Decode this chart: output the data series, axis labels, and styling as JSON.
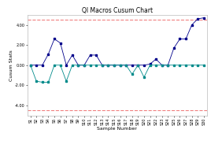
{
  "title": "QI Macros Cusum Chart",
  "xlabel": "Sample Number",
  "ylabel": "Cusum Stats",
  "ylim": [
    -5.0,
    5.0
  ],
  "yticks": [
    -4.0,
    -2.0,
    0.0,
    2.0,
    4.0
  ],
  "ytick_labels": [
    "-4.00",
    "-2.00",
    "0.00",
    "2.00",
    "4.00"
  ],
  "upper_limit": 4.5,
  "lower_limit": -4.5,
  "limit_color": "#f08080",
  "limit_dash": "--",
  "x_labels": [
    "S1",
    "S2",
    "S3",
    "S4",
    "S5",
    "S6",
    "S7",
    "S8",
    "S9",
    "S10",
    "S11",
    "S12",
    "S13",
    "S14",
    "S15",
    "S16",
    "S17",
    "S18",
    "S19",
    "S20",
    "S21",
    "S22",
    "S23",
    "S24",
    "S25",
    "S26",
    "S27",
    "S28",
    "S29",
    "S30"
  ],
  "cusum_high": [
    0.0,
    0.0,
    0.0,
    1.1,
    2.6,
    2.2,
    0.0,
    1.0,
    0.0,
    0.0,
    1.0,
    1.0,
    0.0,
    0.0,
    0.0,
    0.0,
    0.0,
    0.0,
    0.0,
    0.0,
    0.1,
    0.6,
    0.0,
    0.0,
    1.7,
    2.6,
    2.6,
    4.0,
    4.6,
    4.7
  ],
  "cusum_low": [
    0.0,
    -1.6,
    -1.7,
    -1.7,
    0.0,
    0.0,
    -1.6,
    0.0,
    0.0,
    0.0,
    0.0,
    0.0,
    0.0,
    0.0,
    0.0,
    0.0,
    0.0,
    -0.9,
    0.0,
    -1.2,
    0.0,
    0.0,
    0.0,
    0.0,
    0.0,
    0.0,
    0.0,
    0.0,
    0.0,
    0.0
  ],
  "line_high_color": "#00008B",
  "line_low_color": "#008B8B",
  "marker": "s",
  "marker_size": 1.5,
  "background_color": "#ffffff",
  "title_fontsize": 5.5,
  "axis_label_fontsize": 4.5,
  "tick_fontsize": 3.5,
  "line_width": 0.6
}
